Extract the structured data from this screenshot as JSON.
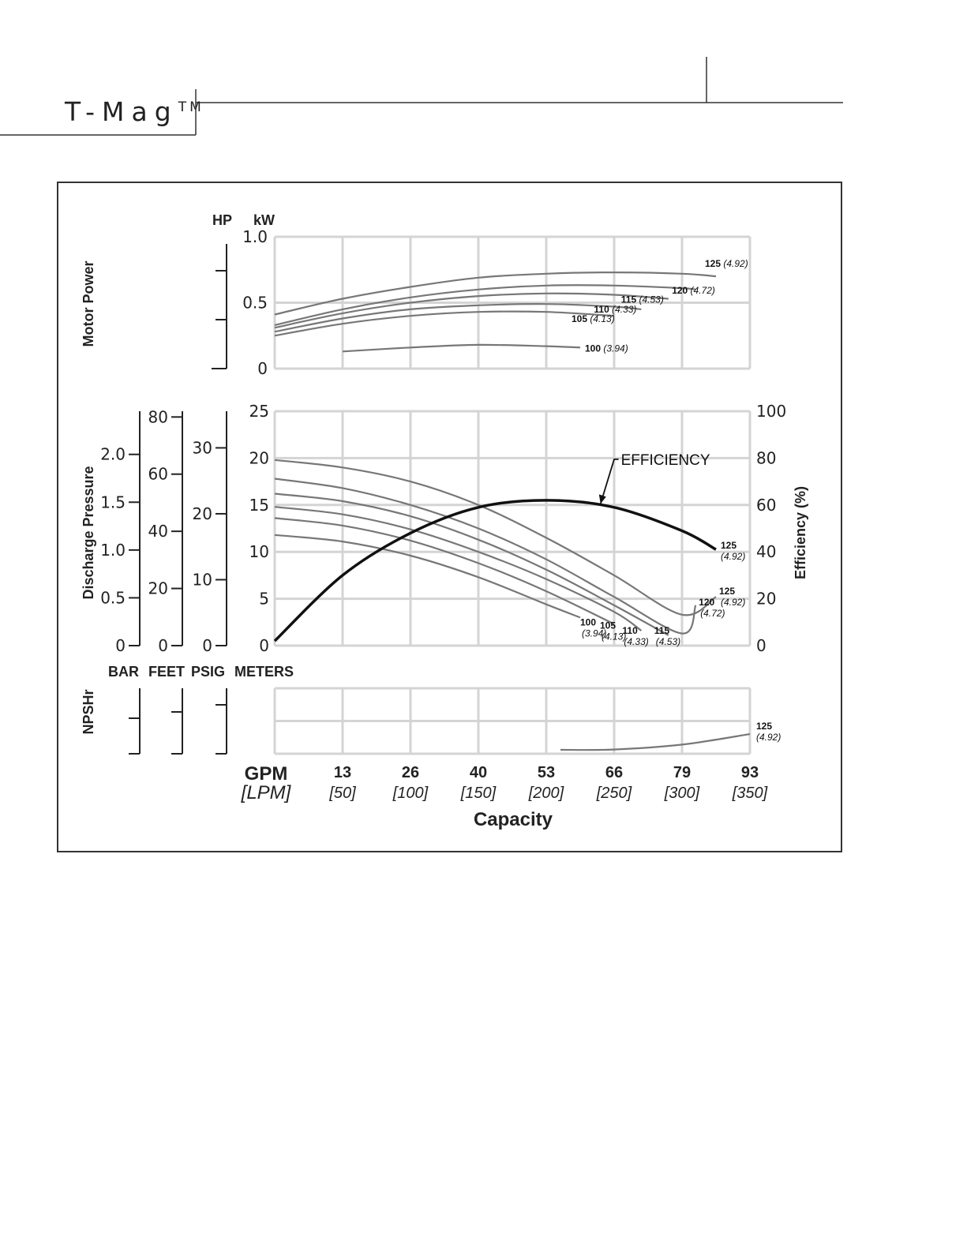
{
  "header": {
    "brand": "T-Mag",
    "trademark": "TM"
  },
  "chart_data": [
    {
      "type": "line",
      "name": "motor_power",
      "ylabel": "Motor Power",
      "left_axis_units": [
        "HP",
        "kW"
      ],
      "ylim": [
        0,
        1.0
      ],
      "yticks": [
        "0",
        "0.5",
        "1.0"
      ],
      "series": [
        {
          "name": "125",
          "sub": "(4.92)",
          "x": [
            0,
            50,
            100,
            150,
            200,
            250,
            300,
            325
          ],
          "y": [
            0.41,
            0.53,
            0.62,
            0.69,
            0.72,
            0.73,
            0.72,
            0.7
          ]
        },
        {
          "name": "120",
          "sub": "(4.72)",
          "x": [
            0,
            50,
            100,
            150,
            200,
            250,
            300,
            310
          ],
          "y": [
            0.33,
            0.45,
            0.54,
            0.6,
            0.63,
            0.63,
            0.61,
            0.6
          ]
        },
        {
          "name": "115",
          "sub": "(4.53)",
          "x": [
            0,
            50,
            100,
            150,
            200,
            250,
            290
          ],
          "y": [
            0.31,
            0.42,
            0.5,
            0.55,
            0.57,
            0.56,
            0.53
          ]
        },
        {
          "name": "110",
          "sub": "(4.33)",
          "x": [
            0,
            50,
            100,
            150,
            200,
            250,
            270
          ],
          "y": [
            0.28,
            0.38,
            0.45,
            0.48,
            0.49,
            0.47,
            0.45
          ]
        },
        {
          "name": "105",
          "sub": "(4.13)",
          "x": [
            0,
            50,
            100,
            150,
            200,
            250
          ],
          "y": [
            0.25,
            0.34,
            0.4,
            0.43,
            0.43,
            0.4
          ]
        },
        {
          "name": "100",
          "sub": "(3.94)",
          "x": [
            50,
            100,
            150,
            200,
            225
          ],
          "y": [
            0.13,
            0.16,
            0.18,
            0.17,
            0.16
          ]
        }
      ]
    },
    {
      "type": "line",
      "name": "discharge_pressure",
      "ylabel": "Discharge Pressure",
      "left_axis_units": [
        "BAR",
        "FEET",
        "PSIG",
        "METERS"
      ],
      "ylim": [
        0,
        25
      ],
      "yticks": [
        "0",
        "5",
        "10",
        "15",
        "20",
        "25"
      ],
      "bar_ticks": [
        "0",
        "0.5",
        "1.0",
        "1.5",
        "2.0"
      ],
      "feet_ticks": [
        "0",
        "20",
        "40",
        "60",
        "80"
      ],
      "psig_ticks": [
        "0",
        "10",
        "20",
        "30"
      ],
      "y2label": "Efficiency (%)",
      "y2lim": [
        0,
        100
      ],
      "y2ticks": [
        "0",
        "20",
        "40",
        "60",
        "80",
        "100"
      ],
      "series": [
        {
          "name": "125",
          "sub": "(4.92)",
          "x": [
            0,
            50,
            100,
            150,
            200,
            250,
            300,
            325
          ],
          "y": [
            19.8,
            19.0,
            17.5,
            15.0,
            11.5,
            7.5,
            3.3,
            5.2
          ]
        },
        {
          "name": "120",
          "sub": "(4.72)",
          "x": [
            0,
            50,
            100,
            150,
            200,
            250,
            300,
            310
          ],
          "y": [
            17.8,
            16.8,
            15.0,
            12.5,
            9.2,
            5.2,
            1.3,
            4.3
          ]
        },
        {
          "name": "115",
          "sub": "(4.53)",
          "x": [
            0,
            50,
            100,
            150,
            200,
            250,
            290
          ],
          "y": [
            16.2,
            15.4,
            13.8,
            11.3,
            8.1,
            4.3,
            1.1
          ]
        },
        {
          "name": "110",
          "sub": "(4.33)",
          "x": [
            0,
            50,
            100,
            150,
            200,
            250,
            270
          ],
          "y": [
            14.8,
            14.0,
            12.4,
            10.0,
            7.1,
            3.6,
            1.6
          ]
        },
        {
          "name": "105",
          "sub": "(4.13)",
          "x": [
            0,
            50,
            100,
            150,
            200,
            250
          ],
          "y": [
            13.6,
            12.8,
            11.2,
            8.8,
            5.8,
            2.3
          ]
        },
        {
          "name": "100",
          "sub": "(3.94)",
          "x": [
            0,
            50,
            100,
            150,
            200,
            225
          ],
          "y": [
            11.8,
            11.1,
            9.6,
            7.3,
            4.4,
            3.0
          ]
        }
      ],
      "efficiency": {
        "name": "EFFICIENCY",
        "end_label": "125",
        "end_sub": "(4.92)",
        "x": [
          0,
          50,
          100,
          150,
          200,
          250,
          300,
          325
        ],
        "y": [
          2,
          30,
          48,
          59,
          62,
          59,
          49,
          41
        ]
      }
    },
    {
      "type": "line",
      "name": "npshr",
      "ylabel": "NPSHr",
      "series": [
        {
          "name": "125",
          "sub": "(4.92)",
          "x": [
            200,
            250,
            300,
            350
          ],
          "y": [
            0.12,
            0.13,
            0.28,
            0.6
          ]
        }
      ]
    }
  ],
  "x_axis": {
    "title": "Capacity",
    "gpm_label": "GPM",
    "lpm_label": "[LPM]",
    "gpm": [
      "13",
      "26",
      "40",
      "53",
      "66",
      "79",
      "93"
    ],
    "lpm": [
      "[50]",
      "[100]",
      "[150]",
      "[200]",
      "[250]",
      "[300]",
      "[350]"
    ],
    "xlim": [
      0,
      350
    ]
  }
}
